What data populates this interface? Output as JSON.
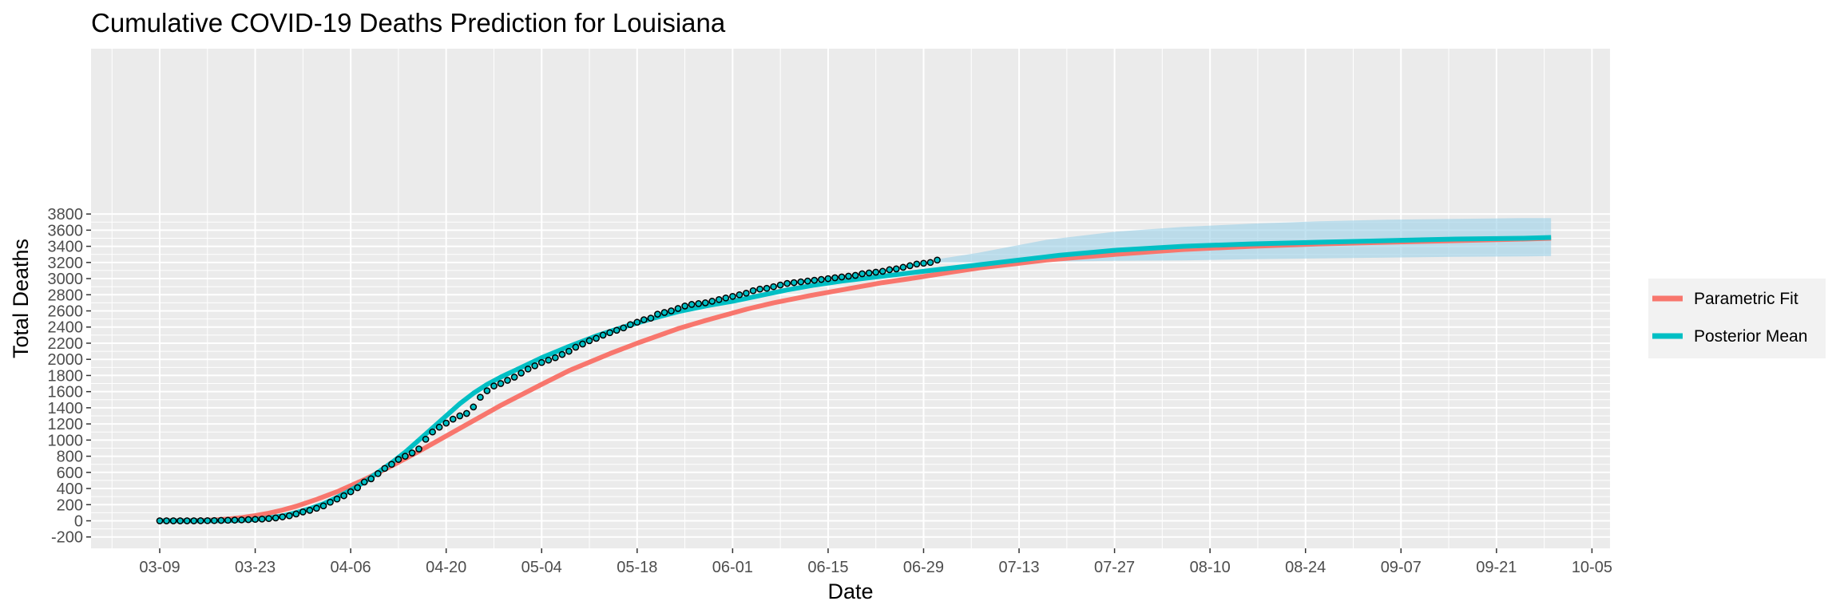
{
  "chart_data": {
    "type": "line",
    "title": "Cumulative COVID-19 Deaths Prediction for Louisiana",
    "xlabel": "Date",
    "ylabel": "Total Deaths",
    "ylim": [
      -200,
      3900
    ],
    "y_ticks": [
      -200,
      0,
      200,
      400,
      600,
      800,
      1000,
      1200,
      1400,
      1600,
      1800,
      2000,
      2200,
      2400,
      2600,
      2800,
      3000,
      3200,
      3400,
      3600,
      3800
    ],
    "x_tick_labels": [
      "03-09",
      "03-23",
      "04-06",
      "04-20",
      "05-04",
      "05-18",
      "06-01",
      "06-15",
      "06-29",
      "07-13",
      "07-27",
      "08-10",
      "08-24",
      "09-07",
      "09-21",
      "10-05"
    ],
    "x_unit": "days since 03-09",
    "xlim": [
      -10,
      211
    ],
    "grid": true,
    "legend_position": "right",
    "colors": {
      "parametric": "#F8766D",
      "posterior": "#00BFC4",
      "band": "#9ED2E8",
      "panel": "#EBEBEB",
      "grid": "#ffffff"
    },
    "series": [
      {
        "name": "Parametric Fit",
        "x": [
          0,
          5,
          8,
          10,
          12,
          14,
          16,
          18,
          20,
          23,
          26,
          30,
          34,
          38,
          42,
          46,
          50,
          56,
          60,
          66,
          70,
          76,
          80,
          86,
          90,
          96,
          100,
          106,
          110,
          116,
          120,
          130,
          140,
          150,
          160,
          170,
          180,
          190,
          200,
          204
        ],
        "y": [
          0,
          2,
          10,
          22,
          40,
          64,
          95,
          133,
          180,
          265,
          360,
          510,
          680,
          860,
          1050,
          1240,
          1430,
          1690,
          1860,
          2070,
          2200,
          2380,
          2480,
          2620,
          2700,
          2800,
          2860,
          2950,
          3000,
          3080,
          3130,
          3230,
          3300,
          3360,
          3400,
          3430,
          3450,
          3470,
          3490,
          3500
        ]
      },
      {
        "name": "Posterior Mean",
        "x": [
          0,
          5,
          10,
          12,
          14,
          16,
          18,
          20,
          22,
          24,
          26,
          28,
          30,
          32,
          34,
          36,
          38,
          40,
          42,
          44,
          46,
          48,
          50,
          52,
          54,
          56,
          58,
          60,
          64,
          68,
          72,
          76,
          80,
          84,
          88,
          92,
          96,
          100,
          104,
          108,
          112,
          116,
          120,
          124,
          128,
          132,
          136,
          140,
          146,
          150,
          160,
          170,
          180,
          190,
          200,
          204
        ],
        "y": [
          0,
          0,
          2,
          8,
          18,
          35,
          60,
          100,
          150,
          210,
          290,
          380,
          480,
          600,
          720,
          850,
          1000,
          1150,
          1300,
          1450,
          1580,
          1690,
          1780,
          1860,
          1940,
          2020,
          2090,
          2160,
          2290,
          2400,
          2500,
          2590,
          2660,
          2720,
          2790,
          2860,
          2920,
          2970,
          3010,
          3050,
          3090,
          3130,
          3170,
          3210,
          3250,
          3290,
          3320,
          3350,
          3380,
          3400,
          3430,
          3450,
          3470,
          3490,
          3500,
          3510
        ]
      }
    ],
    "band": {
      "x": [
        114,
        120,
        130,
        140,
        150,
        160,
        170,
        180,
        190,
        200,
        204
      ],
      "lower": [
        3200,
        3200,
        3210,
        3220,
        3225,
        3240,
        3250,
        3260,
        3270,
        3275,
        3280
      ],
      "upper": [
        3240,
        3320,
        3480,
        3580,
        3640,
        3680,
        3710,
        3730,
        3740,
        3750,
        3750
      ]
    },
    "observed": {
      "x": [
        0,
        1,
        2,
        3,
        4,
        5,
        6,
        7,
        8,
        9,
        10,
        11,
        12,
        13,
        14,
        15,
        16,
        17,
        18,
        19,
        20,
        21,
        22,
        23,
        24,
        25,
        26,
        27,
        28,
        29,
        30,
        31,
        32,
        33,
        34,
        35,
        36,
        37,
        38,
        39,
        40,
        41,
        42,
        43,
        44,
        45,
        46,
        47,
        48,
        49,
        50,
        51,
        52,
        53,
        54,
        55,
        56,
        57,
        58,
        59,
        60,
        61,
        62,
        63,
        64,
        65,
        66,
        67,
        68,
        69,
        70,
        71,
        72,
        73,
        74,
        75,
        76,
        77,
        78,
        79,
        80,
        81,
        82,
        83,
        84,
        85,
        86,
        87,
        88,
        89,
        90,
        91,
        92,
        93,
        94,
        95,
        96,
        97,
        98,
        99,
        100,
        101,
        102,
        103,
        104,
        105,
        106,
        107,
        108,
        109,
        110,
        111,
        112,
        113,
        114
      ],
      "y": [
        0,
        0,
        0,
        0,
        0,
        0,
        1,
        2,
        3,
        5,
        7,
        9,
        12,
        15,
        18,
        22,
        28,
        36,
        48,
        62,
        85,
        110,
        130,
        155,
        185,
        230,
        270,
        310,
        360,
        410,
        480,
        520,
        585,
        650,
        700,
        760,
        800,
        840,
        890,
        1010,
        1100,
        1160,
        1210,
        1260,
        1300,
        1330,
        1410,
        1530,
        1610,
        1670,
        1700,
        1740,
        1780,
        1830,
        1880,
        1920,
        1960,
        1990,
        2020,
        2060,
        2100,
        2150,
        2190,
        2230,
        2260,
        2300,
        2330,
        2360,
        2390,
        2430,
        2460,
        2490,
        2510,
        2560,
        2580,
        2600,
        2630,
        2660,
        2680,
        2690,
        2700,
        2720,
        2740,
        2760,
        2780,
        2800,
        2820,
        2850,
        2870,
        2880,
        2900,
        2920,
        2940,
        2950,
        2960,
        2970,
        2980,
        2990,
        3000,
        3010,
        3020,
        3030,
        3040,
        3060,
        3070,
        3080,
        3090,
        3110,
        3120,
        3140,
        3160,
        3180,
        3190,
        3200,
        3230
      ]
    }
  }
}
